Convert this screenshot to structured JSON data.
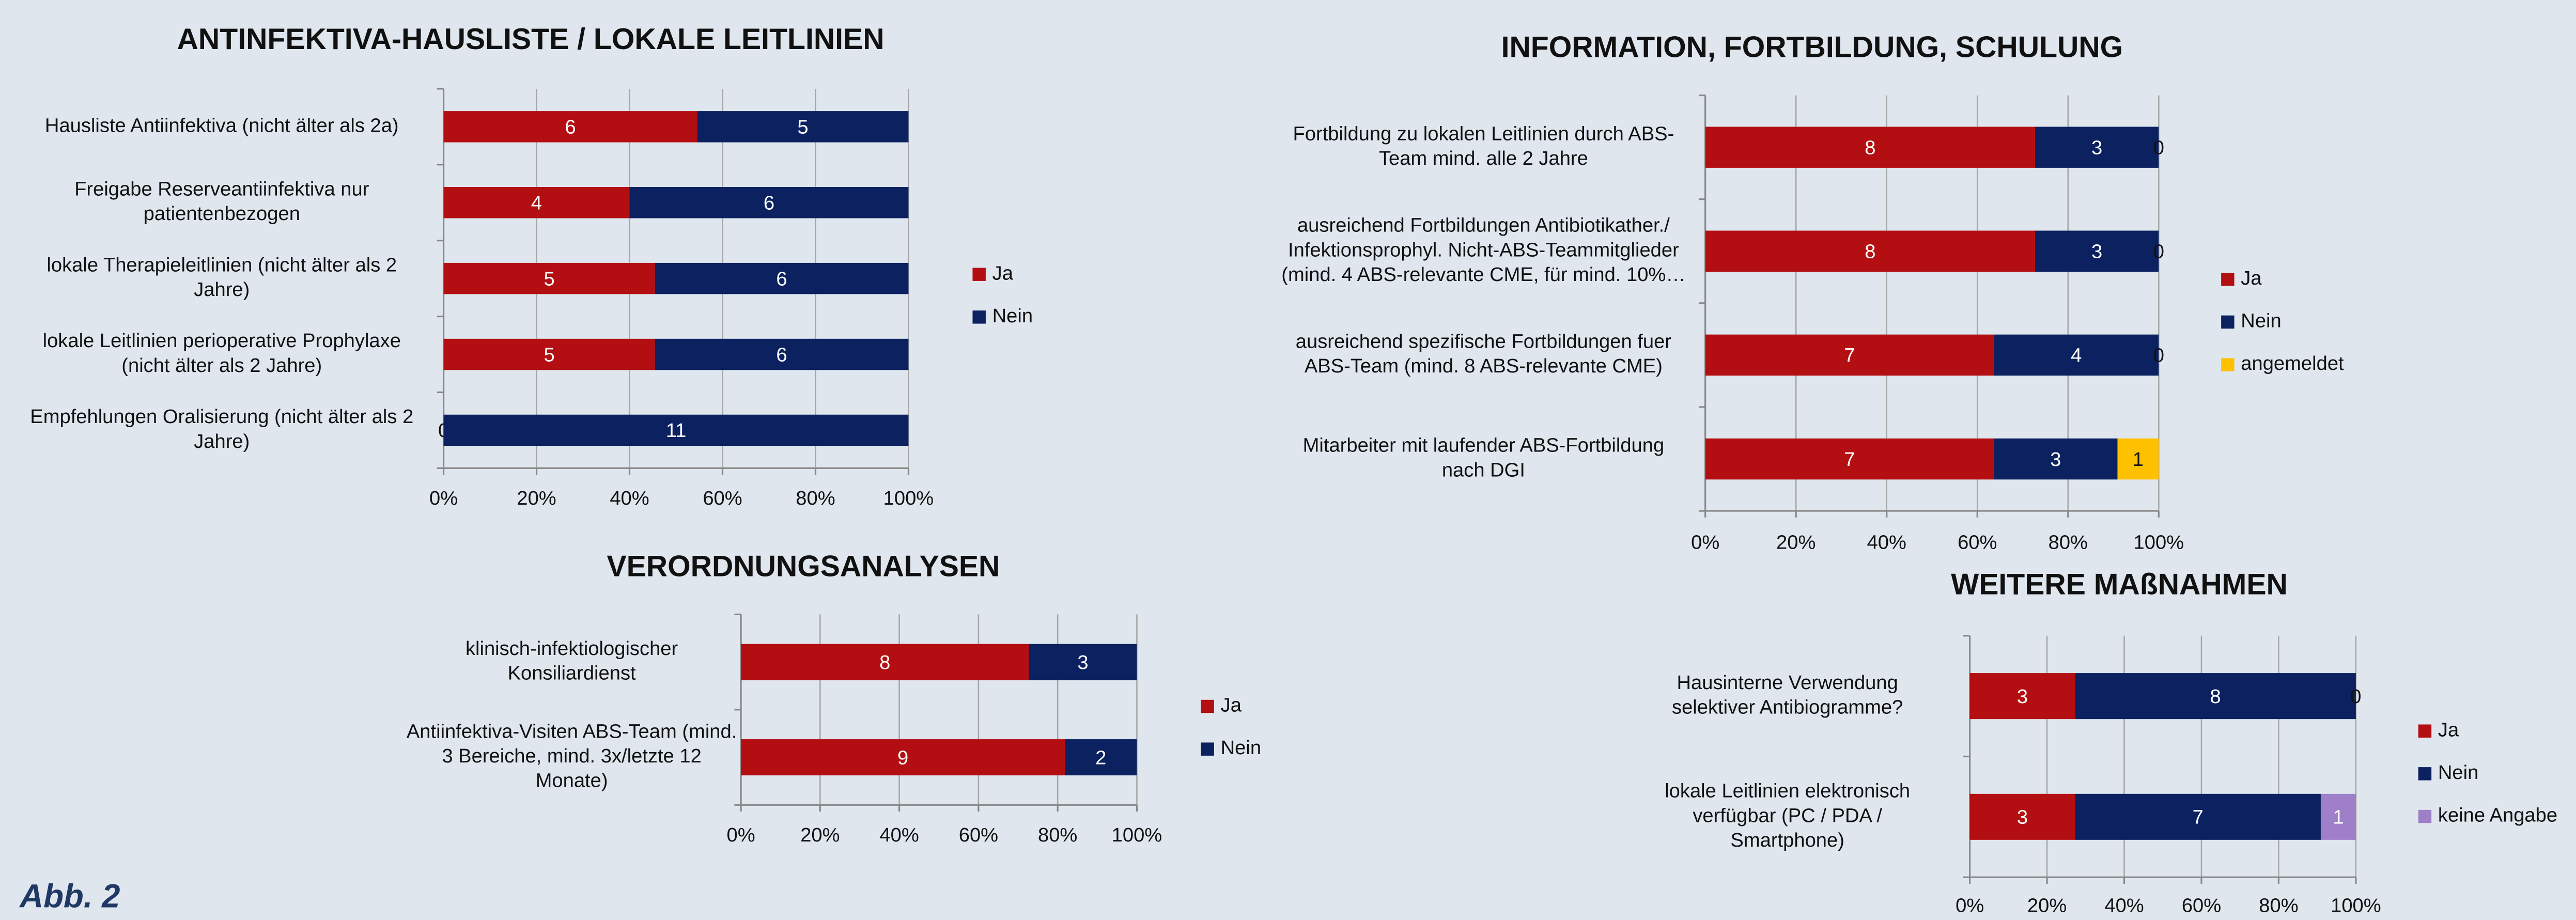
{
  "caption": "Abb. 2",
  "chart_data": [
    {
      "type": "bar",
      "stack": "percent",
      "title": "ANTINFEKTIVA-HAUSLISTE / LOKALE LEITLINIEN",
      "categories": [
        "Hausliste Antiinfektiva (nicht älter als 2a)",
        "Freigabe Reserveantiinfektiva nur\npatientenbezogen",
        "lokale Therapieleitlinien (nicht älter als 2\nJahre)",
        "lokale Leitlinien perioperative Prophylaxe\n(nicht älter als 2 Jahre)",
        "Empfehlungen Oralisierung (nicht älter als 2\nJahre)"
      ],
      "series": [
        {
          "name": "Ja",
          "color": "#b30f12",
          "values": [
            6,
            4,
            5,
            5,
            0
          ]
        },
        {
          "name": "Nein",
          "color": "#0b2160",
          "values": [
            5,
            6,
            6,
            6,
            11
          ]
        }
      ],
      "xlim": [
        0,
        100
      ],
      "xticks": [
        {
          "value": 0,
          "label": "0%"
        },
        {
          "value": 20,
          "label": "20%"
        },
        {
          "value": 40,
          "label": "40%"
        },
        {
          "value": 60,
          "label": "60%"
        },
        {
          "value": 80,
          "label": "80%"
        },
        {
          "value": 100,
          "label": "100%"
        }
      ],
      "grid": true
    },
    {
      "type": "bar",
      "stack": "percent",
      "title": "INFORMATION, FORTBILDUNG, SCHULUNG",
      "categories": [
        "Fortbildung zu lokalen Leitlinien durch ABS-\nTeam mind. alle 2 Jahre",
        "ausreichend Fortbildungen Antibiotikather./\nInfektionsprophyl.  Nicht-ABS-Teammitglieder\n(mind. 4 ABS-relevante CME, für mind. 10%…",
        "ausreichend spezifische Fortbildungen fuer\nABS-Team (mind. 8 ABS-relevante CME)",
        "Mitarbeiter mit laufender ABS-Fortbildung\nnach DGI"
      ],
      "series": [
        {
          "name": "Ja",
          "color": "#b30f12",
          "values": [
            8,
            8,
            7,
            7
          ]
        },
        {
          "name": "Nein",
          "color": "#0b2160",
          "values": [
            3,
            3,
            4,
            3
          ]
        },
        {
          "name": "angemeldet",
          "color": "#ffc000",
          "values": [
            0,
            0,
            0,
            1
          ]
        }
      ],
      "xlim": [
        0,
        100
      ],
      "xticks": [
        {
          "value": 0,
          "label": "0%"
        },
        {
          "value": 20,
          "label": "20%"
        },
        {
          "value": 40,
          "label": "40%"
        },
        {
          "value": 60,
          "label": "60%"
        },
        {
          "value": 80,
          "label": "80%"
        },
        {
          "value": 100,
          "label": "100%"
        }
      ],
      "grid": true
    },
    {
      "type": "bar",
      "stack": "percent",
      "title": "VERORDNUNGSANALYSEN",
      "categories": [
        "klinisch-infektiologischer\nKonsiliardienst",
        "Antiinfektiva-Visiten ABS-Team (mind.\n3 Bereiche, mind. 3x/letzte 12\nMonate)"
      ],
      "series": [
        {
          "name": "Ja",
          "color": "#b30f12",
          "values": [
            8,
            9
          ]
        },
        {
          "name": "Nein",
          "color": "#0b2160",
          "values": [
            3,
            2
          ]
        }
      ],
      "xlim": [
        0,
        100
      ],
      "xticks": [
        {
          "value": 0,
          "label": "0%"
        },
        {
          "value": 20,
          "label": "20%"
        },
        {
          "value": 40,
          "label": "40%"
        },
        {
          "value": 60,
          "label": "60%"
        },
        {
          "value": 80,
          "label": "80%"
        },
        {
          "value": 100,
          "label": "100%"
        }
      ],
      "grid": true
    },
    {
      "type": "bar",
      "stack": "percent",
      "title": "WEITERE MAßNAHMEN",
      "categories": [
        "Hausinterne Verwendung\nselektiver Antibiogramme?",
        "lokale Leitlinien elektronisch\nverfügbar (PC / PDA /\nSmartphone)"
      ],
      "series": [
        {
          "name": "Ja",
          "color": "#b30f12",
          "values": [
            3,
            3
          ]
        },
        {
          "name": "Nein",
          "color": "#0b2160",
          "values": [
            8,
            7
          ]
        },
        {
          "name": "keine Angabe",
          "color": "#9e7fc8",
          "values": [
            0,
            1
          ]
        }
      ],
      "xlim": [
        0,
        100
      ],
      "xticks": [
        {
          "value": 0,
          "label": "0%"
        },
        {
          "value": 20,
          "label": "20%"
        },
        {
          "value": 40,
          "label": "40%"
        },
        {
          "value": 60,
          "label": "60%"
        },
        {
          "value": 80,
          "label": "80%"
        },
        {
          "value": 100,
          "label": "100%"
        }
      ],
      "grid": true
    }
  ]
}
